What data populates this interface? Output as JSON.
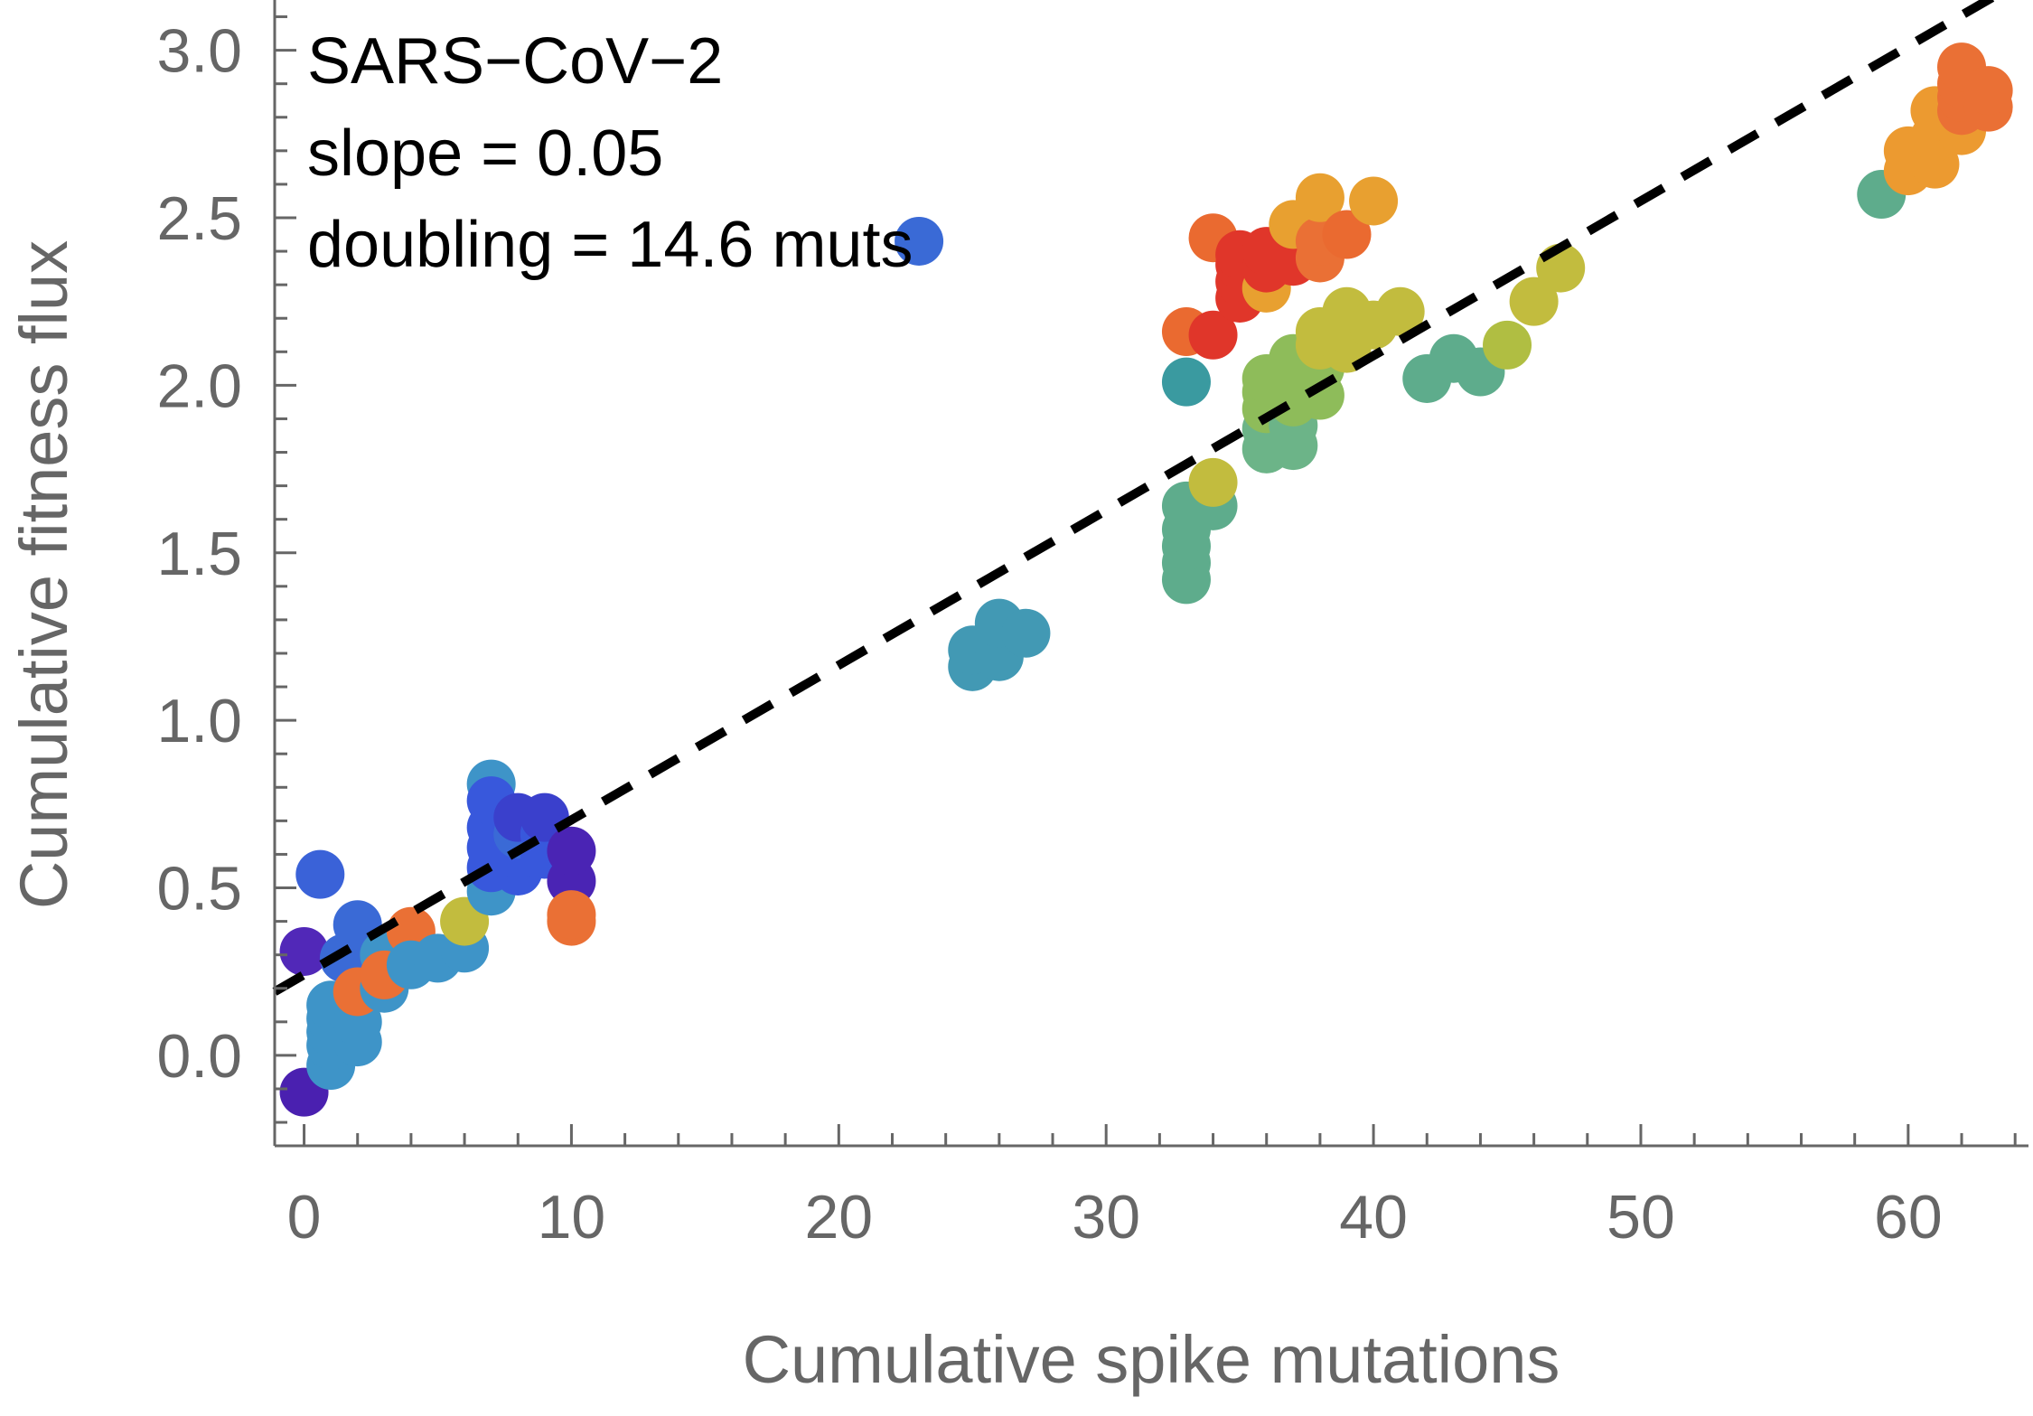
{
  "chart_data": {
    "type": "scatter",
    "xlabel": "Cumulative spike mutations",
    "ylabel": "Cumulative fitness flux",
    "xlim": [
      -1.1,
      64.5
    ],
    "ylim": [
      -0.27,
      3.15
    ],
    "xticks": [
      0,
      10,
      20,
      30,
      40,
      50,
      60
    ],
    "xtick_labels": [
      "0",
      "10",
      "20",
      "30",
      "40",
      "50",
      "60"
    ],
    "yticks": [
      0.0,
      0.5,
      1.0,
      1.5,
      2.0,
      2.5,
      3.0
    ],
    "ytick_labels": [
      "0.0",
      "0.5",
      "1.0",
      "1.5",
      "2.0",
      "2.5",
      "3.0"
    ],
    "grid": false,
    "annotations": [
      "SARS−CoV−2",
      "slope = 0.05",
      "doubling = 14.6 muts"
    ],
    "fit_line": {
      "style": "dashed",
      "color": "#000000",
      "points": [
        [
          -1.1,
          0.19
        ],
        [
          64.5,
          3.22
        ]
      ]
    },
    "points": [
      {
        "x": 0,
        "y": -0.11,
        "c": "#4a20b0"
      },
      {
        "x": 0,
        "y": 0.31,
        "c": "#5128b8"
      },
      {
        "x": 0.6,
        "y": 0.54,
        "c": "#3a62d8"
      },
      {
        "x": 1,
        "y": -0.03,
        "c": "#3e94c8"
      },
      {
        "x": 1,
        "y": 0.03,
        "c": "#3e94c8"
      },
      {
        "x": 1,
        "y": 0.07,
        "c": "#3e94c8"
      },
      {
        "x": 1,
        "y": 0.11,
        "c": "#3e94c8"
      },
      {
        "x": 1,
        "y": 0.15,
        "c": "#3e94c8"
      },
      {
        "x": 1.5,
        "y": 0.29,
        "c": "#3a6ad6"
      },
      {
        "x": 2,
        "y": 0.04,
        "c": "#3e94c8"
      },
      {
        "x": 2,
        "y": 0.1,
        "c": "#3e94c8"
      },
      {
        "x": 2,
        "y": 0.39,
        "c": "#3a6ad6"
      },
      {
        "x": 2,
        "y": 0.19,
        "c": "#ea7035"
      },
      {
        "x": 3,
        "y": 0.2,
        "c": "#3e94c8"
      },
      {
        "x": 3,
        "y": 0.3,
        "c": "#3e94c8"
      },
      {
        "x": 3,
        "y": 0.24,
        "c": "#ea7035"
      },
      {
        "x": 4,
        "y": 0.37,
        "c": "#ea7035"
      },
      {
        "x": 4,
        "y": 0.27,
        "c": "#3e94c8"
      },
      {
        "x": 5,
        "y": 0.29,
        "c": "#3e94c8"
      },
      {
        "x": 6,
        "y": 0.32,
        "c": "#3e94c8"
      },
      {
        "x": 6,
        "y": 0.4,
        "c": "#c2bc3e"
      },
      {
        "x": 7,
        "y": 0.81,
        "c": "#3e94c8"
      },
      {
        "x": 7,
        "y": 0.49,
        "c": "#3e94c8"
      },
      {
        "x": 7,
        "y": 0.56,
        "c": "#3858dc"
      },
      {
        "x": 7,
        "y": 0.62,
        "c": "#3858dc"
      },
      {
        "x": 7,
        "y": 0.68,
        "c": "#3858dc"
      },
      {
        "x": 7,
        "y": 0.76,
        "c": "#3858dc"
      },
      {
        "x": 8,
        "y": 0.55,
        "c": "#3858dc"
      },
      {
        "x": 8,
        "y": 0.6,
        "c": "#3858dc"
      },
      {
        "x": 8,
        "y": 0.66,
        "c": "#3a6ad6"
      },
      {
        "x": 8,
        "y": 0.71,
        "c": "#3a40cc"
      },
      {
        "x": 9,
        "y": 0.6,
        "c": "#3858dc"
      },
      {
        "x": 9,
        "y": 0.66,
        "c": "#3858dc"
      },
      {
        "x": 9,
        "y": 0.71,
        "c": "#3a40cc"
      },
      {
        "x": 10,
        "y": 0.52,
        "c": "#4a24b4"
      },
      {
        "x": 10,
        "y": 0.61,
        "c": "#4a24b4"
      },
      {
        "x": 10,
        "y": 0.4,
        "c": "#ea7035"
      },
      {
        "x": 10,
        "y": 0.42,
        "c": "#ea7035"
      },
      {
        "x": 23,
        "y": 2.43,
        "c": "#3a6ad6"
      },
      {
        "x": 25,
        "y": 1.16,
        "c": "#4299b4"
      },
      {
        "x": 25,
        "y": 1.21,
        "c": "#4299b4"
      },
      {
        "x": 26,
        "y": 1.19,
        "c": "#4299b4"
      },
      {
        "x": 26,
        "y": 1.29,
        "c": "#4299b4"
      },
      {
        "x": 27,
        "y": 1.26,
        "c": "#4299b4"
      },
      {
        "x": 33,
        "y": 1.42,
        "c": "#5eac8c"
      },
      {
        "x": 33,
        "y": 1.47,
        "c": "#5eac8c"
      },
      {
        "x": 33,
        "y": 1.52,
        "c": "#5eac8c"
      },
      {
        "x": 33,
        "y": 1.57,
        "c": "#5eac8c"
      },
      {
        "x": 33,
        "y": 1.64,
        "c": "#5eac8c"
      },
      {
        "x": 34,
        "y": 1.64,
        "c": "#5eac8c"
      },
      {
        "x": 33,
        "y": 2.01,
        "c": "#3a9aa0"
      },
      {
        "x": 34,
        "y": 1.71,
        "c": "#c2bc3e"
      },
      {
        "x": 33,
        "y": 2.16,
        "c": "#ea6a30"
      },
      {
        "x": 34,
        "y": 2.15,
        "c": "#e0362a"
      },
      {
        "x": 34,
        "y": 2.44,
        "c": "#ea6a30"
      },
      {
        "x": 35,
        "y": 2.26,
        "c": "#e0362a"
      },
      {
        "x": 35,
        "y": 2.31,
        "c": "#e0362a"
      },
      {
        "x": 35,
        "y": 2.36,
        "c": "#e0362a"
      },
      {
        "x": 35,
        "y": 2.39,
        "c": "#e0362a"
      },
      {
        "x": 36,
        "y": 2.29,
        "c": "#e8a030"
      },
      {
        "x": 36,
        "y": 2.35,
        "c": "#e0362a"
      },
      {
        "x": 36,
        "y": 2.4,
        "c": "#e0362a"
      },
      {
        "x": 37,
        "y": 2.37,
        "c": "#e0362a"
      },
      {
        "x": 37,
        "y": 2.44,
        "c": "#e0362a"
      },
      {
        "x": 37,
        "y": 2.48,
        "c": "#e8a030"
      },
      {
        "x": 38,
        "y": 2.38,
        "c": "#ea7035"
      },
      {
        "x": 38,
        "y": 2.43,
        "c": "#ea7035"
      },
      {
        "x": 38,
        "y": 2.56,
        "c": "#e8a030"
      },
      {
        "x": 39,
        "y": 2.45,
        "c": "#ea6a30"
      },
      {
        "x": 40,
        "y": 2.55,
        "c": "#e8a030"
      },
      {
        "x": 36,
        "y": 1.81,
        "c": "#6cb488"
      },
      {
        "x": 36,
        "y": 1.87,
        "c": "#6cb488"
      },
      {
        "x": 36,
        "y": 1.93,
        "c": "#8ebc5a"
      },
      {
        "x": 36,
        "y": 1.98,
        "c": "#8ebc5a"
      },
      {
        "x": 36,
        "y": 2.02,
        "c": "#8ebc5a"
      },
      {
        "x": 37,
        "y": 1.82,
        "c": "#6cb488"
      },
      {
        "x": 37,
        "y": 1.88,
        "c": "#6cb488"
      },
      {
        "x": 37,
        "y": 1.95,
        "c": "#8ebc5a"
      },
      {
        "x": 37,
        "y": 2.01,
        "c": "#8ebc5a"
      },
      {
        "x": 37,
        "y": 2.08,
        "c": "#8ebc5a"
      },
      {
        "x": 38,
        "y": 1.97,
        "c": "#8ebc5a"
      },
      {
        "x": 38,
        "y": 2.05,
        "c": "#8ebc5a"
      },
      {
        "x": 38,
        "y": 2.12,
        "c": "#c2bc3e"
      },
      {
        "x": 38,
        "y": 2.16,
        "c": "#c2bc3e"
      },
      {
        "x": 39,
        "y": 2.11,
        "c": "#c2bc3e"
      },
      {
        "x": 39,
        "y": 2.17,
        "c": "#c2bc3e"
      },
      {
        "x": 39,
        "y": 2.22,
        "c": "#c2bc3e"
      },
      {
        "x": 40,
        "y": 2.18,
        "c": "#c2bc3e"
      },
      {
        "x": 41,
        "y": 2.22,
        "c": "#c2bc3e"
      },
      {
        "x": 42,
        "y": 2.02,
        "c": "#5eac8c"
      },
      {
        "x": 43,
        "y": 2.08,
        "c": "#5eac8c"
      },
      {
        "x": 44,
        "y": 2.04,
        "c": "#5eac8c"
      },
      {
        "x": 45,
        "y": 2.12,
        "c": "#b0be42"
      },
      {
        "x": 46,
        "y": 2.25,
        "c": "#c2bc3e"
      },
      {
        "x": 47,
        "y": 2.35,
        "c": "#c2bc3e"
      },
      {
        "x": 59,
        "y": 2.57,
        "c": "#5eac8c"
      },
      {
        "x": 60,
        "y": 2.64,
        "c": "#ec9a30"
      },
      {
        "x": 60,
        "y": 2.7,
        "c": "#ec9a30"
      },
      {
        "x": 61,
        "y": 2.66,
        "c": "#ec9a30"
      },
      {
        "x": 61,
        "y": 2.74,
        "c": "#ec9a30"
      },
      {
        "x": 61,
        "y": 2.82,
        "c": "#ec9a30"
      },
      {
        "x": 62,
        "y": 2.76,
        "c": "#ec9a30"
      },
      {
        "x": 62,
        "y": 2.82,
        "c": "#ea7035"
      },
      {
        "x": 62,
        "y": 2.86,
        "c": "#ea7035"
      },
      {
        "x": 62,
        "y": 2.9,
        "c": "#ea7035"
      },
      {
        "x": 62,
        "y": 2.95,
        "c": "#ea7035"
      },
      {
        "x": 63,
        "y": 2.83,
        "c": "#ea7035"
      },
      {
        "x": 63,
        "y": 2.88,
        "c": "#ea7035"
      }
    ]
  }
}
